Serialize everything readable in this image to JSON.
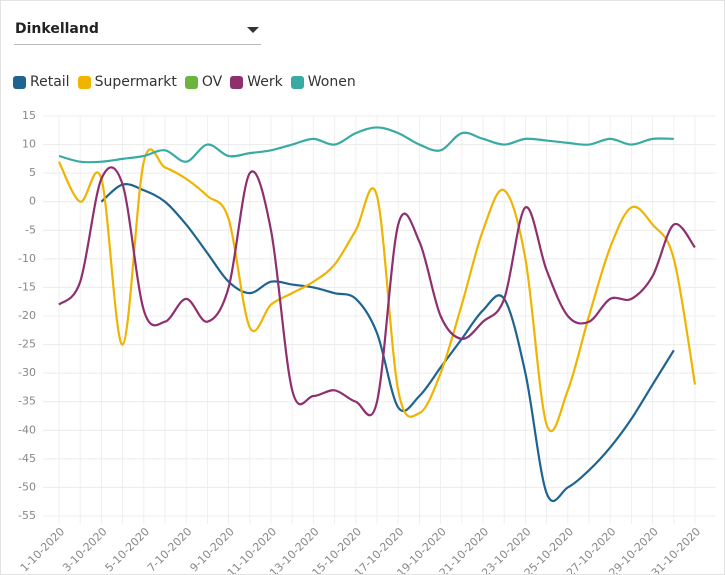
{
  "dropdown": {
    "selected": "Dinkelland"
  },
  "chart_data": {
    "type": "line",
    "categories": [
      "1-10-2020",
      null,
      "3-10-2020",
      null,
      "5-10-2020",
      null,
      "7-10-2020",
      null,
      "9-10-2020",
      null,
      "11-10-2020",
      null,
      "13-10-2020",
      null,
      "15-10-2020",
      null,
      "17-10-2020",
      null,
      "19-10-2020",
      null,
      "21-10-2020",
      null,
      "23-10-2020",
      null,
      "25-10-2020",
      null,
      "27-10-2020",
      null,
      "29-10-2020",
      null,
      "31-10-2020"
    ],
    "series": [
      {
        "name": "Retail",
        "color": "#1f6391",
        "values": [
          null,
          null,
          0,
          3,
          2,
          0,
          -4,
          -9,
          -14,
          -16,
          -14,
          -14.5,
          -15,
          -16,
          -17,
          -23,
          -36,
          -34,
          -29,
          -24,
          -19,
          -17,
          -30,
          -51,
          -50,
          -47,
          -43,
          -38,
          -32,
          -26,
          null
        ]
      },
      {
        "name": "Supermarkt",
        "color": "#f0b400",
        "values": [
          7,
          0,
          4,
          -25,
          7,
          6,
          4,
          1,
          -3,
          -22,
          -18,
          -16,
          -14,
          -11,
          -5,
          1,
          -33,
          -37,
          -30,
          -18,
          -5,
          2,
          -10,
          -39,
          -33,
          -20,
          -8,
          -1,
          -4,
          -10,
          -32
        ]
      },
      {
        "name": "OV",
        "color": "#6cb33f",
        "values": [
          null,
          null,
          null,
          null,
          null,
          null,
          null,
          null,
          null,
          null,
          null,
          null,
          null,
          null,
          null,
          null,
          null,
          null,
          null,
          null,
          null,
          null,
          null,
          null,
          null,
          null,
          null,
          null,
          null,
          null,
          null
        ]
      },
      {
        "name": "Werk",
        "color": "#8e2f6e",
        "values": [
          -18,
          -14,
          4,
          3,
          -19,
          -21,
          -17,
          -21,
          -15,
          5,
          -5,
          -33,
          -34,
          -33,
          -35,
          -35,
          -4,
          -7,
          -20,
          -24,
          -21,
          -17,
          -1,
          -12,
          -20,
          -21,
          -17,
          -17,
          -13,
          -4,
          -8
        ]
      },
      {
        "name": "Wonen",
        "color": "#3aaba3",
        "values": [
          8,
          7,
          7,
          7.5,
          8,
          9,
          7,
          10,
          8,
          8.5,
          9,
          10,
          11,
          10,
          12,
          13,
          12,
          10,
          9,
          12,
          11,
          10,
          11,
          10.7,
          10.3,
          10,
          11,
          10,
          11,
          11,
          null
        ]
      }
    ],
    "ylim": [
      -55,
      15
    ],
    "yticks": [
      -55,
      -50,
      -45,
      -40,
      -35,
      -30,
      -25,
      -20,
      -15,
      -10,
      -5,
      0,
      5,
      10,
      15
    ],
    "grid": true,
    "legend": "top"
  }
}
